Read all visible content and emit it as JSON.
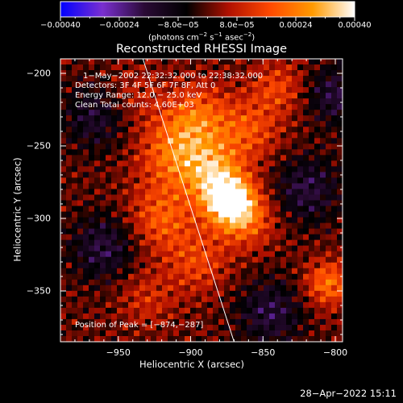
{
  "chart_data": {
    "type": "heatmap",
    "title": "Reconstructed RHESSI Image",
    "xlabel": "Heliocentric X (arcsec)",
    "ylabel": "Heliocentric Y (arcsec)",
    "xlim": [
      -990,
      -795
    ],
    "ylim": [
      -385,
      -190
    ],
    "x_ticks": [
      -950,
      -900,
      -850,
      -800
    ],
    "y_ticks": [
      -200,
      -250,
      -300,
      -350
    ],
    "x_tick_labels": [
      "−950",
      "−900",
      "−850",
      "−800"
    ],
    "y_tick_labels": [
      "−200",
      "−250",
      "−300",
      "−350"
    ],
    "colorbar": {
      "range": [
        -0.0004,
        0.0004
      ],
      "tick_values": [
        -0.0004,
        -0.00024,
        -8e-05,
        8e-05,
        0.00024,
        0.0004
      ],
      "tick_labels": [
        "−0.00040",
        "−0.00024",
        "−8.0e−05",
        "8.0e−05",
        "0.00024",
        "0.00040"
      ],
      "unit_label": "(photons cm",
      "unit_exp1": "−2",
      "unit_mid": " s",
      "unit_exp2": "−1",
      "unit_mid2": " asec",
      "unit_exp3": "−2",
      "unit_end": ")",
      "colors": [
        "#0000ff",
        "#7a2fd0",
        "#2a0a35",
        "#000000",
        "#b01000",
        "#ff4a00",
        "#ff9a00",
        "#ffffff"
      ]
    },
    "annotations": {
      "time": "1−May−2002 22:32:32.000 to 22:38:32.000",
      "detectors": "Detectors: 3F 4F 5F 6F 7F 8F, Att 0",
      "energy": "Energy Range: 12.0 − 25.0 keV",
      "clean": "Clean     Total counts: 4.60E+03",
      "peak": "Position of Peak = [−874,−287]"
    },
    "peak": [
      -874,
      -287
    ],
    "limb_line": [
      [
        -933,
        -190
      ],
      [
        -870,
        -385
      ]
    ],
    "sources": [
      {
        "x": -874,
        "y": -287,
        "amp": 1.0,
        "sigma": 12
      },
      {
        "x": -885,
        "y": -268,
        "amp": 0.55,
        "sigma": 14
      },
      {
        "x": -862,
        "y": -300,
        "amp": 0.5,
        "sigma": 14
      },
      {
        "x": -910,
        "y": -255,
        "amp": 0.55,
        "sigma": 18
      },
      {
        "x": -895,
        "y": -230,
        "amp": 0.45,
        "sigma": 16
      },
      {
        "x": -860,
        "y": -240,
        "amp": 0.4,
        "sigma": 15
      },
      {
        "x": -840,
        "y": -210,
        "amp": 0.35,
        "sigma": 13
      },
      {
        "x": -920,
        "y": -300,
        "amp": 0.45,
        "sigma": 16
      },
      {
        "x": -895,
        "y": -330,
        "amp": 0.35,
        "sigma": 15
      },
      {
        "x": -930,
        "y": -355,
        "amp": 0.25,
        "sigma": 14
      },
      {
        "x": -805,
        "y": -345,
        "amp": 0.55,
        "sigma": 11
      },
      {
        "x": -940,
        "y": -215,
        "amp": 0.2,
        "sigma": 14
      },
      {
        "x": -960,
        "y": -320,
        "amp": -0.4,
        "sigma": 16
      },
      {
        "x": -965,
        "y": -230,
        "amp": -0.35,
        "sigma": 16
      },
      {
        "x": -820,
        "y": -280,
        "amp": -0.4,
        "sigma": 16
      },
      {
        "x": -845,
        "y": -365,
        "amp": -0.4,
        "sigma": 16
      },
      {
        "x": -800,
        "y": -215,
        "amp": -0.4,
        "sigma": 14
      }
    ]
  },
  "footer": {
    "timestamp": "28−Apr−2022 15:11"
  }
}
